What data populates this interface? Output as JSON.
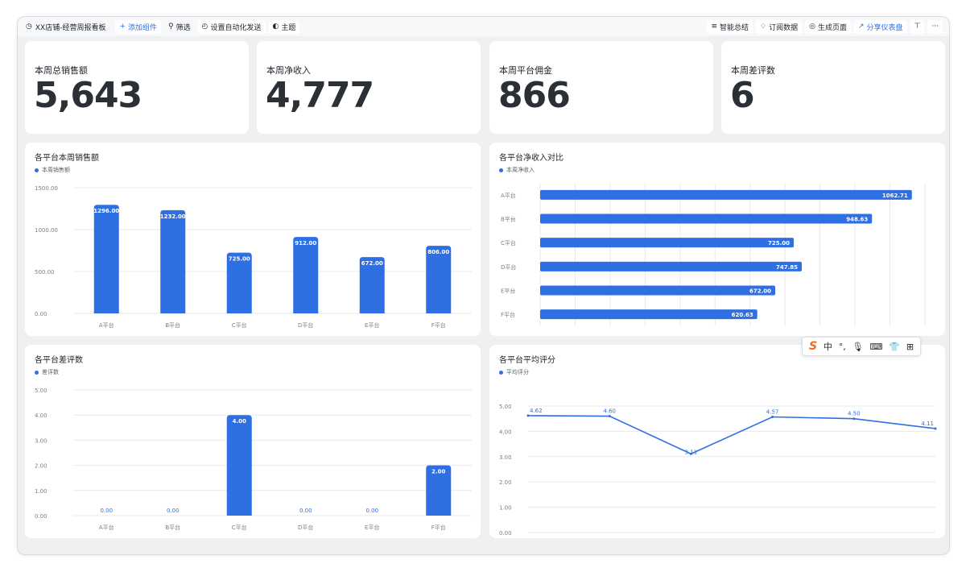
{
  "toolbar": {
    "title": "XX店铺-经营周报看板",
    "add_component": "添加组件",
    "filter": "筛选",
    "auto_send": "设置自动化发送",
    "theme": "主题",
    "smart_summary": "智能总结",
    "subscribe": "订阅数据",
    "generate_page": "生成页面",
    "share": "分享仪表盘",
    "more": "···"
  },
  "kpis": [
    {
      "label": "本周总销售额",
      "value": "5,643"
    },
    {
      "label": "本周净收入",
      "value": "4,777"
    },
    {
      "label": "本周平台佣金",
      "value": "866"
    },
    {
      "label": "本周差评数",
      "value": "6"
    }
  ],
  "ime": {
    "logo": "S",
    "lang": "中",
    "dot": "°,",
    "mic": "🎙",
    "keyboard": "⌨",
    "skin": "👕",
    "grid": "⊞"
  },
  "colors": {
    "accent": "#2f6fe4",
    "grid": "#e6e8eb",
    "axis_text": "#7a7f87"
  },
  "chart_data": [
    {
      "type": "bar",
      "title": "各平台本周销售额",
      "series": [
        {
          "name": "本周销售额",
          "values": [
            1296.0,
            1232.0,
            725.0,
            912.0,
            672.0,
            806.0
          ]
        }
      ],
      "categories": [
        "A平台",
        "B平台",
        "C平台",
        "D平台",
        "E平台",
        "F平台"
      ],
      "y_ticks": [
        "0.00",
        "500.00",
        "1000.00",
        "1500.00"
      ],
      "ylim": [
        0,
        1500
      ],
      "data_labels": [
        "1296.00",
        "1232.00",
        "725.00",
        "912.00",
        "672.00",
        "806.00"
      ],
      "grid": true,
      "legend": "top-left"
    },
    {
      "type": "bar",
      "orientation": "horizontal",
      "title": "各平台净收入对比",
      "series": [
        {
          "name": "本周净收入",
          "values": [
            1062.71,
            948.63,
            725.0,
            747.85,
            672.0,
            620.63
          ]
        }
      ],
      "categories": [
        "A平台",
        "B平台",
        "C平台",
        "D平台",
        "E平台",
        "F平台"
      ],
      "x_ticks": [
        "0.00",
        "100.00",
        "200.00",
        "300.00",
        "400.00",
        "500.00",
        "600.00",
        "700.00",
        "800.00",
        "900.00",
        "1000.00",
        "1100.00"
      ],
      "xlim": [
        0,
        1100
      ],
      "data_labels": [
        "1062.71",
        "948.63",
        "725.00",
        "747.85",
        "672.00",
        "620.63"
      ],
      "grid": true,
      "legend": "top-left"
    },
    {
      "type": "bar",
      "title": "各平台差评数",
      "series": [
        {
          "name": "差评数",
          "values": [
            0,
            0,
            4,
            0,
            0,
            2
          ]
        }
      ],
      "categories": [
        "A平台",
        "B平台",
        "C平台",
        "D平台",
        "E平台",
        "F平台"
      ],
      "y_ticks": [
        "0.00",
        "1.00",
        "2.00",
        "3.00",
        "4.00",
        "5.00"
      ],
      "ylim": [
        0,
        5
      ],
      "data_labels": [
        "0.00",
        "0.00",
        "4.00",
        "0.00",
        "0.00",
        "2.00"
      ],
      "grid": true,
      "legend": "top-left"
    },
    {
      "type": "line",
      "title": "各平台平均评分",
      "series": [
        {
          "name": "平均评分",
          "values": [
            4.62,
            4.6,
            3.11,
            4.57,
            4.5,
            4.11
          ]
        }
      ],
      "categories": [
        "A平台",
        "B平台",
        "C平台",
        "D平台",
        "E平台",
        "F平台"
      ],
      "y_ticks": [
        "0.00",
        "1.00",
        "2.00",
        "3.00",
        "4.00",
        "5.00"
      ],
      "ylim": [
        0,
        5
      ],
      "data_labels": [
        "4.62",
        "4.60",
        "3.11",
        "4.57",
        "4.50",
        "4.11"
      ],
      "grid": true,
      "legend": "top-left"
    }
  ]
}
